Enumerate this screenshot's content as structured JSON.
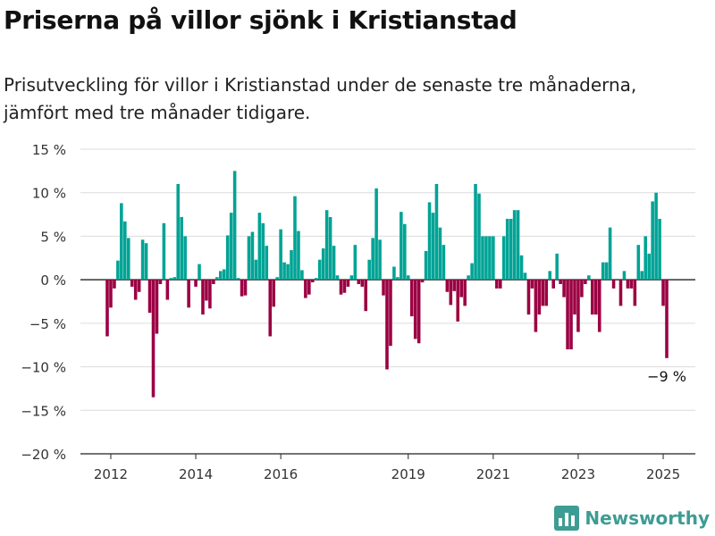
{
  "header": {
    "title": "Priserna på villor sjönk i Kristianstad",
    "subtitle": "Prisutveckling för villor i Kristianstad under de senaste tre månaderna, jämfört med tre månader tidigare."
  },
  "brand": {
    "name": "Newsworthy",
    "icon": "bar-chart-logo-icon",
    "color": "#3d9c94"
  },
  "chart_data": {
    "type": "bar",
    "title": "",
    "xlabel": "",
    "ylabel": "",
    "ylim": [
      -20,
      15
    ],
    "y_ticks": [
      15,
      10,
      5,
      0,
      -5,
      -10,
      -15,
      -20
    ],
    "y_tick_labels": [
      "15 %",
      "10 %",
      "5 %",
      "0 %",
      "−5 %",
      "−10 %",
      "−15 %",
      "−20 %"
    ],
    "x_ticks": [
      {
        "label": "2012",
        "at": "2012-01"
      },
      {
        "label": "2014",
        "at": "2014-01"
      },
      {
        "label": "2016",
        "at": "2016-01"
      },
      {
        "label": "2019",
        "at": "2019-01"
      },
      {
        "label": "2021",
        "at": "2021-01"
      },
      {
        "label": "2023",
        "at": "2023-01"
      },
      {
        "label": "2025",
        "at": "2025-01"
      }
    ],
    "start": "2011-12",
    "grid": true,
    "colors": {
      "positive": "#00a395",
      "negative": "#9b0042",
      "zero_line": "#333333",
      "grid": "#dcdcdc"
    },
    "values": [
      -6.5,
      -3.2,
      -1,
      2.2,
      8.8,
      6.7,
      4.8,
      -0.8,
      -2.3,
      -1.4,
      4.6,
      4.2,
      -3.8,
      -13.5,
      -6.2,
      -0.5,
      6.5,
      -2.3,
      0.2,
      0.3,
      11,
      7.2,
      5,
      -3.2,
      0.1,
      -0.8,
      1.8,
      -4,
      -2.4,
      -3.3,
      -0.5,
      0.3,
      1,
      1.2,
      5.1,
      7.7,
      12.5,
      0.2,
      -1.9,
      -1.8,
      5.0,
      5.5,
      2.3,
      7.7,
      6.5,
      3.9,
      -6.5,
      -3.1,
      0.3,
      5.8,
      2.0,
      1.8,
      3.4,
      9.6,
      5.6,
      1.1,
      -2.1,
      -1.7,
      -0.3,
      0.2,
      2.3,
      3.6,
      8.0,
      7.2,
      3.9,
      0.5,
      -1.7,
      -1.5,
      -0.8,
      0.5,
      4.0,
      -0.5,
      -0.8,
      -3.6,
      2.3,
      4.8,
      10.5,
      4.6,
      -1.8,
      -10.3,
      -7.6,
      1.5,
      0.3,
      7.8,
      6.4,
      0.5,
      -4.2,
      -6.8,
      -7.3,
      -0.3,
      3.3,
      8.9,
      7.7,
      11,
      6,
      4.0,
      -1.4,
      -2.9,
      -1.3,
      -4.8,
      -2.0,
      -3.0,
      0.5,
      1.9,
      11.0,
      9.9,
      5.0,
      5.0,
      5.0,
      5.0,
      -1.0,
      -1.0,
      5.0,
      7.0,
      7.0,
      8.0,
      8.0,
      2.8,
      0.8,
      -4.0,
      -1.0,
      -6.0,
      -4.0,
      -3.0,
      -3.0,
      1.0,
      -1.0,
      3.0,
      -0.5,
      -2.0,
      -8.0,
      -8.0,
      -4.0,
      -6.0,
      -2.0,
      -0.5,
      0.5,
      -4.0,
      -4.0,
      -6.0,
      2.0,
      2.0,
      6.0,
      -1.0,
      0.0,
      -3.0,
      1.0,
      -1.0,
      -1.0,
      -3.0,
      4.0,
      1.0,
      5.0,
      3.0,
      9.0,
      10.0,
      7.0,
      -3.0,
      -9.0
    ],
    "annotations": [
      {
        "text": "−9 %",
        "at": "last"
      }
    ]
  }
}
